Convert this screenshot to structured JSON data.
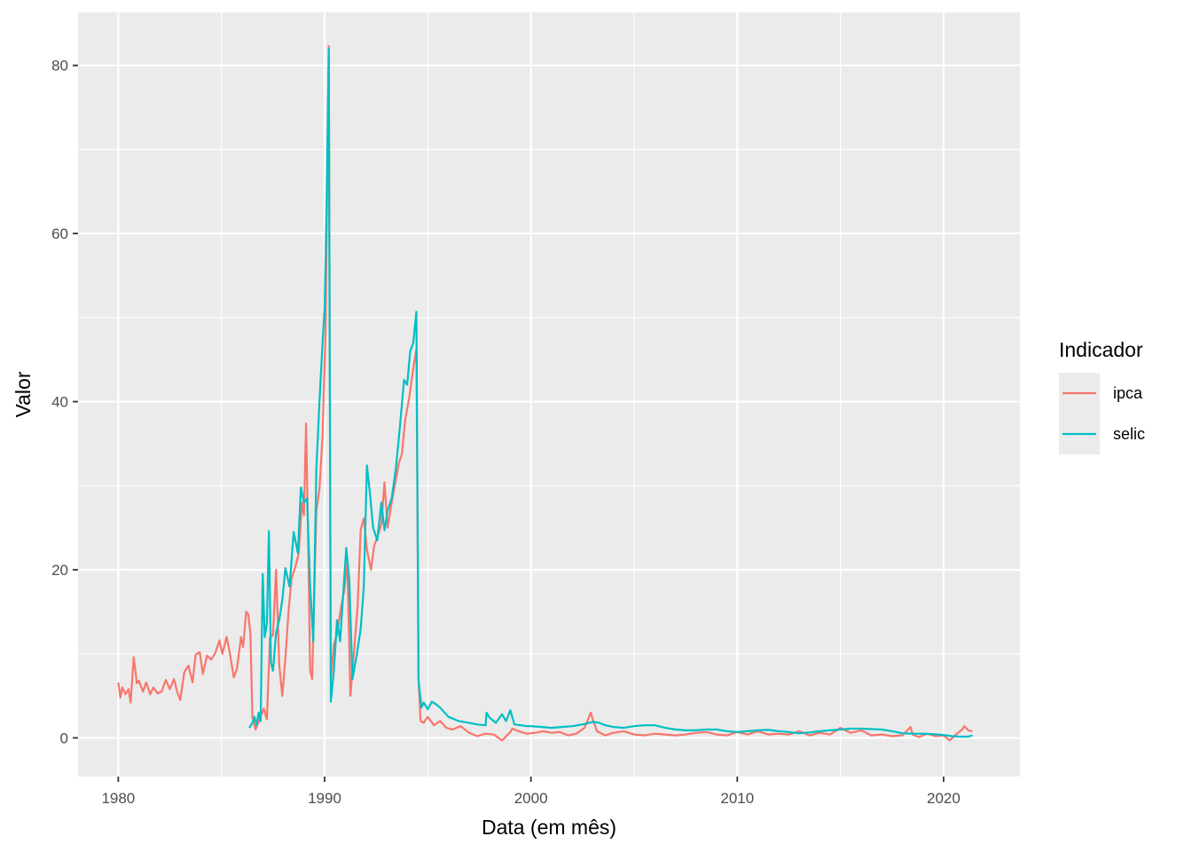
{
  "chart_data": {
    "type": "line",
    "xlabel": "Data (em mês)",
    "ylabel": "Valor",
    "xlim": [
      1978.05,
      2023.7
    ],
    "ylim": [
      -4.6,
      86.3
    ],
    "x_ticks": [
      1980,
      1990,
      2000,
      2010,
      2020
    ],
    "y_ticks": [
      0,
      20,
      40,
      60,
      80
    ],
    "grid": true,
    "legend": {
      "title": "Indicador",
      "position": "right"
    },
    "series": [
      {
        "name": "ipca",
        "color": "#F8766D",
        "x": [
          1980.0,
          1980.1,
          1980.2,
          1980.35,
          1980.5,
          1980.6,
          1980.75,
          1980.9,
          1981.0,
          1981.2,
          1981.35,
          1981.55,
          1981.7,
          1981.9,
          1982.1,
          1982.3,
          1982.5,
          1982.7,
          1982.85,
          1983.0,
          1983.2,
          1983.4,
          1983.6,
          1983.75,
          1983.95,
          1984.1,
          1984.3,
          1984.5,
          1984.7,
          1984.9,
          1985.05,
          1985.25,
          1985.4,
          1985.6,
          1985.75,
          1985.95,
          1986.05,
          1986.2,
          1986.3,
          1986.4,
          1986.5,
          1986.65,
          1986.85,
          1987.05,
          1987.2,
          1987.35,
          1987.5,
          1987.65,
          1987.8,
          1987.95,
          1988.1,
          1988.25,
          1988.4,
          1988.6,
          1988.75,
          1988.9,
          1989.0,
          1989.1,
          1989.2,
          1989.3,
          1989.4,
          1989.6,
          1989.75,
          1989.9,
          1990.05,
          1990.15,
          1990.2,
          1990.3,
          1990.45,
          1990.6,
          1990.8,
          1990.95,
          1991.1,
          1991.25,
          1991.45,
          1991.6,
          1991.75,
          1991.9,
          1992.05,
          1992.25,
          1992.4,
          1992.6,
          1992.75,
          1992.9,
          1993.05,
          1993.25,
          1993.4,
          1993.6,
          1993.75,
          1993.9,
          1994.1,
          1994.3,
          1994.45,
          1994.55,
          1994.65,
          1994.8,
          1995.0,
          1995.3,
          1995.6,
          1995.9,
          1996.2,
          1996.6,
          1997.0,
          1997.4,
          1997.8,
          1998.2,
          1998.6,
          1999.0,
          1999.1,
          1999.4,
          1999.8,
          2000.2,
          2000.6,
          2001.0,
          2001.4,
          2001.8,
          2002.2,
          2002.6,
          2002.9,
          2003.0,
          2003.2,
          2003.6,
          2004.0,
          2004.5,
          2005.0,
          2005.5,
          2006.0,
          2006.5,
          2007.0,
          2007.5,
          2008.0,
          2008.5,
          2009.0,
          2009.5,
          2010.0,
          2010.5,
          2011.0,
          2011.5,
          2012.0,
          2012.5,
          2013.0,
          2013.5,
          2014.0,
          2014.5,
          2015.0,
          2015.5,
          2016.0,
          2016.5,
          2017.0,
          2017.5,
          2018.0,
          2018.4,
          2018.5,
          2018.8,
          2019.2,
          2019.6,
          2020.0,
          2020.3,
          2020.6,
          2020.9,
          2021.0,
          2021.2,
          2021.4
        ],
        "y": [
          6.6,
          4.8,
          6.0,
          5.2,
          5.8,
          4.2,
          9.6,
          6.5,
          6.8,
          5.5,
          6.6,
          5.2,
          6.0,
          5.3,
          5.5,
          6.9,
          5.8,
          7.0,
          5.5,
          4.5,
          7.8,
          8.6,
          6.6,
          9.9,
          10.2,
          7.6,
          9.8,
          9.3,
          10.1,
          11.6,
          10.0,
          12.0,
          10.2,
          7.2,
          8.2,
          12.0,
          10.8,
          15.0,
          14.7,
          12.5,
          2.5,
          1.0,
          2.2,
          3.5,
          2.2,
          12.0,
          12.2,
          20.0,
          8.8,
          5.0,
          9.5,
          15.0,
          19.0,
          20.5,
          22.0,
          28.0,
          26.5,
          37.4,
          24.0,
          8.0,
          7.0,
          27.0,
          29.6,
          36.0,
          49.0,
          71.0,
          82.3,
          7.0,
          11.2,
          12.3,
          15.6,
          17.5,
          20.8,
          5.0,
          11.0,
          15.6,
          24.8,
          26.1,
          22.4,
          20.0,
          22.8,
          24.2,
          25.4,
          30.4,
          25.0,
          28.0,
          30.0,
          32.7,
          33.8,
          37.7,
          40.5,
          44.0,
          46.3,
          7.0,
          2.0,
          1.8,
          2.5,
          1.5,
          2.0,
          1.2,
          1.0,
          1.4,
          0.6,
          0.2,
          0.5,
          0.4,
          -0.3,
          0.7,
          1.1,
          0.8,
          0.5,
          0.6,
          0.8,
          0.6,
          0.7,
          0.3,
          0.5,
          1.2,
          3.0,
          2.2,
          0.8,
          0.3,
          0.6,
          0.8,
          0.4,
          0.3,
          0.5,
          0.4,
          0.3,
          0.4,
          0.6,
          0.7,
          0.4,
          0.3,
          0.7,
          0.4,
          0.8,
          0.4,
          0.5,
          0.4,
          0.8,
          0.3,
          0.6,
          0.4,
          1.2,
          0.6,
          0.9,
          0.3,
          0.4,
          0.2,
          0.3,
          1.3,
          0.4,
          0.1,
          0.5,
          0.2,
          0.3,
          -0.3,
          0.4,
          1.0,
          1.4,
          0.9,
          0.8
        ]
      },
      {
        "name": "selic",
        "color": "#00BFC4",
        "x": [
          1986.35,
          1986.5,
          1986.6,
          1986.7,
          1986.8,
          1986.9,
          1987.0,
          1987.1,
          1987.2,
          1987.3,
          1987.4,
          1987.5,
          1987.65,
          1987.8,
          1987.95,
          1988.1,
          1988.3,
          1988.5,
          1988.7,
          1988.85,
          1989.0,
          1989.15,
          1989.3,
          1989.45,
          1989.6,
          1989.75,
          1989.9,
          1990.0,
          1990.1,
          1990.2,
          1990.3,
          1990.45,
          1990.6,
          1990.75,
          1990.9,
          1991.05,
          1991.2,
          1991.35,
          1991.55,
          1991.75,
          1991.9,
          1992.05,
          1992.2,
          1992.35,
          1992.55,
          1992.75,
          1992.9,
          1993.05,
          1993.25,
          1993.45,
          1993.65,
          1993.85,
          1994.0,
          1994.15,
          1994.3,
          1994.45,
          1994.55,
          1994.7,
          1994.8,
          1995.0,
          1995.2,
          1995.4,
          1995.6,
          1996.0,
          1996.5,
          1997.0,
          1997.4,
          1997.8,
          1997.85,
          1998.0,
          1998.3,
          1998.6,
          1998.8,
          1999.0,
          1999.2,
          1999.5,
          1999.8,
          2000.0,
          2000.5,
          2001.0,
          2001.5,
          2002.0,
          2002.5,
          2003.0,
          2003.3,
          2003.6,
          2004.0,
          2004.5,
          2005.0,
          2005.5,
          2006.0,
          2006.5,
          2007.0,
          2007.5,
          2008.0,
          2008.5,
          2009.0,
          2009.5,
          2010.0,
          2010.5,
          2011.0,
          2011.5,
          2012.0,
          2012.5,
          2013.0,
          2013.5,
          2014.0,
          2014.5,
          2015.0,
          2015.5,
          2016.0,
          2016.5,
          2017.0,
          2017.5,
          2018.0,
          2018.5,
          2019.0,
          2019.5,
          2020.0,
          2020.4,
          2020.8,
          2021.2,
          2021.4
        ],
        "y": [
          1.2,
          1.8,
          2.5,
          1.5,
          3.0,
          2.0,
          19.5,
          12.0,
          13.6,
          24.6,
          9.0,
          8.0,
          12.5,
          14.0,
          16.4,
          20.2,
          18.0,
          24.5,
          22.0,
          29.8,
          28.0,
          28.5,
          18.0,
          11.5,
          32.0,
          40.0,
          47.0,
          51.0,
          64.0,
          82.0,
          4.3,
          8.0,
          14.0,
          11.5,
          17.0,
          22.6,
          18.8,
          7.0,
          9.8,
          13.0,
          18.0,
          32.4,
          29.0,
          25.0,
          23.5,
          28.0,
          24.7,
          27.0,
          28.5,
          32.0,
          37.0,
          42.6,
          42.0,
          46.0,
          47.0,
          50.7,
          6.8,
          3.6,
          4.2,
          3.4,
          4.3,
          4.0,
          3.6,
          2.5,
          2.0,
          1.8,
          1.6,
          1.5,
          3.0,
          2.4,
          1.8,
          2.8,
          2.0,
          3.3,
          1.6,
          1.5,
          1.4,
          1.4,
          1.3,
          1.2,
          1.3,
          1.4,
          1.6,
          1.9,
          1.8,
          1.5,
          1.3,
          1.2,
          1.4,
          1.5,
          1.5,
          1.2,
          1.0,
          0.9,
          0.9,
          1.0,
          1.0,
          0.8,
          0.7,
          0.8,
          0.9,
          0.95,
          0.8,
          0.7,
          0.55,
          0.65,
          0.8,
          0.9,
          1.0,
          1.1,
          1.1,
          1.05,
          1.0,
          0.8,
          0.55,
          0.5,
          0.5,
          0.45,
          0.35,
          0.2,
          0.15,
          0.15,
          0.3
        ]
      }
    ]
  }
}
